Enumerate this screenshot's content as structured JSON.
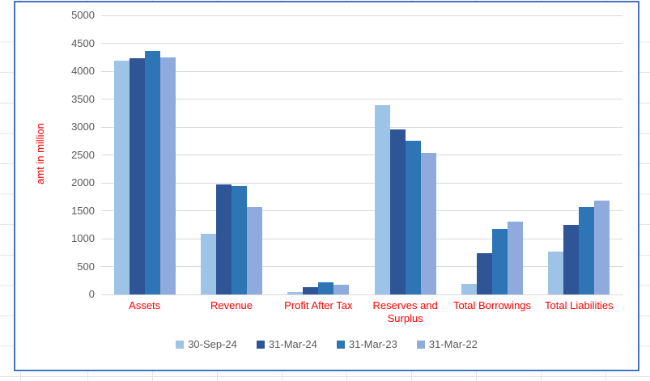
{
  "worksheet": {
    "cell_gridline_color": "#e2e4e8"
  },
  "chart": {
    "border_color": "#4472C4",
    "background_color": "#ffffff",
    "plot_gridline_color": "#d9d9d9",
    "tick_label_color": "#595959",
    "axis_text_color": "#ff0000",
    "y_ticks": [
      "0",
      "500",
      "1000",
      "1500",
      "2000",
      "2500",
      "3000",
      "3500",
      "4000",
      "4500",
      "5000"
    ]
  },
  "chart_data": {
    "type": "bar",
    "title": "",
    "xlabel": "",
    "ylabel": "amt in million",
    "ylim": [
      0,
      5000
    ],
    "ytick_step": 500,
    "grid": true,
    "legend_position": "bottom",
    "categories": [
      "Assets",
      "Revenue",
      "Profit After Tax",
      "Reserves and Surplus",
      "Total Borrowings",
      "Total Liabilities"
    ],
    "series": [
      {
        "name": "30-Sep-24",
        "color": "#9DC3E6",
        "values": [
          4190,
          1080,
          40,
          3390,
          190,
          770
        ]
      },
      {
        "name": "31-Mar-24",
        "color": "#2F5597",
        "values": [
          4230,
          1970,
          125,
          2960,
          745,
          1240
        ]
      },
      {
        "name": "31-Mar-23",
        "color": "#2E75B6",
        "values": [
          4360,
          1940,
          220,
          2760,
          1175,
          1565
        ]
      },
      {
        "name": "31-Mar-22",
        "color": "#8FAADC",
        "values": [
          4240,
          1570,
          180,
          2530,
          1305,
          1680
        ]
      }
    ]
  }
}
